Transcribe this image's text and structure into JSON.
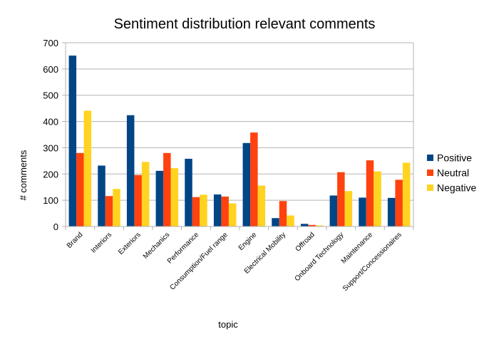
{
  "chart_data": {
    "type": "bar",
    "title": "Sentiment distribution relevant comments",
    "xlabel": "topic",
    "ylabel": "# comments",
    "ylim": [
      0,
      700
    ],
    "yticks": [
      0,
      100,
      200,
      300,
      400,
      500,
      600,
      700
    ],
    "grid": true,
    "legend_position": "right",
    "categories": [
      "Brand",
      "Interiors",
      "Exteriors",
      "Mechanics",
      "Performance",
      "Consumption/Fuel range",
      "Engine",
      "Electrical Mobility",
      "Offroad",
      "Onboard Technology",
      "Maintenance",
      "Support/Concessionaires"
    ],
    "series": [
      {
        "name": "Positive",
        "color": "#004586",
        "values": [
          651,
          232,
          424,
          212,
          258,
          122,
          318,
          32,
          10,
          118,
          110,
          109
        ]
      },
      {
        "name": "Neutral",
        "color": "#ff420e",
        "values": [
          280,
          116,
          196,
          280,
          112,
          114,
          358,
          97,
          6,
          207,
          252,
          178
        ]
      },
      {
        "name": "Negative",
        "color": "#ffd320",
        "values": [
          441,
          143,
          246,
          222,
          121,
          88,
          156,
          42,
          4,
          135,
          210,
          243
        ]
      }
    ]
  }
}
